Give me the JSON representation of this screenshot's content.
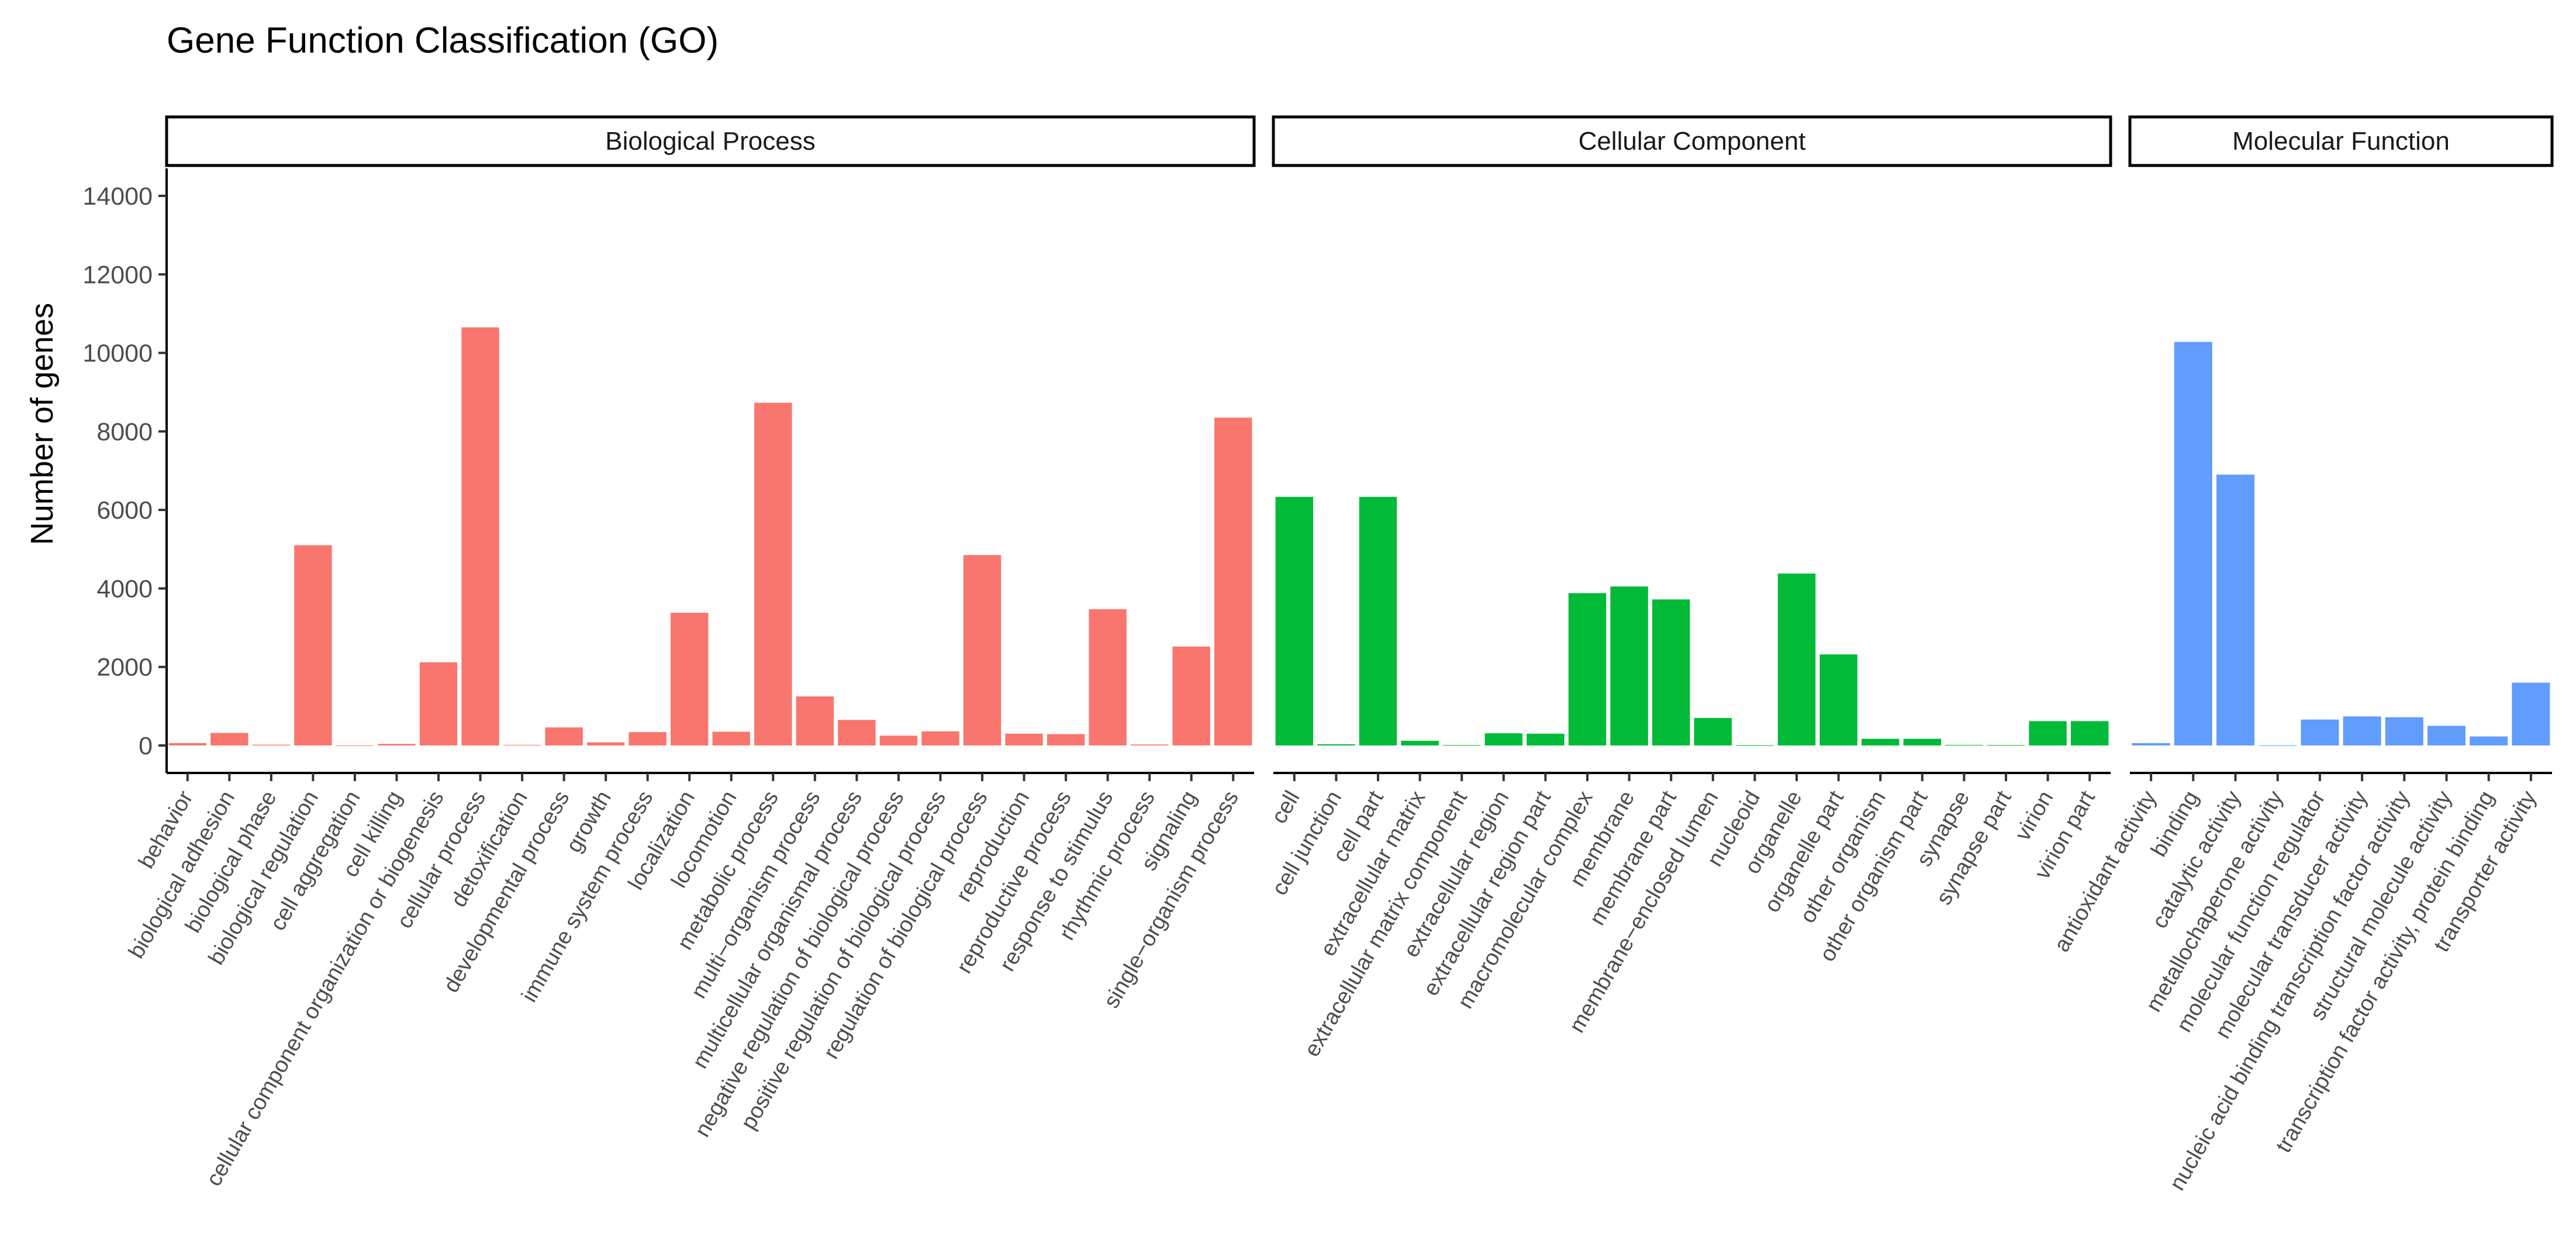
{
  "chart_data": {
    "type": "bar",
    "title": "Gene Function Classification (GO)",
    "xlabel": "",
    "ylabel": "Number of genes",
    "ylim": [
      -700,
      14700
    ],
    "yticks": [
      0,
      2000,
      4000,
      6000,
      8000,
      10000,
      12000,
      14000
    ],
    "grid": false,
    "legend": "none",
    "facets": [
      {
        "name": "Biological Process",
        "color": "#F8766D",
        "categories": [
          "behavior",
          "biological adhesion",
          "biological phase",
          "biological regulation",
          "cell aggregation",
          "cell killing",
          "cellular component organization or biogenesis",
          "cellular process",
          "detoxification",
          "developmental process",
          "growth",
          "immune system process",
          "localization",
          "locomotion",
          "metabolic process",
          "multi−organism process",
          "multicellular organismal process",
          "negative regulation of biological process",
          "positive regulation of biological process",
          "regulation of biological process",
          "reproduction",
          "reproductive process",
          "response to stimulus",
          "rhythmic process",
          "signaling",
          "single−organism process"
        ],
        "values": [
          60,
          320,
          20,
          5100,
          5,
          40,
          2120,
          10650,
          15,
          460,
          80,
          340,
          3380,
          350,
          8730,
          1250,
          650,
          250,
          360,
          4850,
          300,
          290,
          3470,
          25,
          2520,
          8350
        ]
      },
      {
        "name": "Cellular Component",
        "color": "#00BA38",
        "categories": [
          "cell",
          "cell junction",
          "cell part",
          "extracellular matrix",
          "extracellular matrix component",
          "extracellular region",
          "extracellular region part",
          "macromolecular complex",
          "membrane",
          "membrane part",
          "membrane−enclosed lumen",
          "nucleoid",
          "organelle",
          "organelle part",
          "other organism",
          "other organism part",
          "synapse",
          "synapse part",
          "virion",
          "virion part"
        ],
        "values": [
          6330,
          30,
          6330,
          120,
          10,
          310,
          300,
          3880,
          4050,
          3720,
          700,
          5,
          4380,
          2320,
          170,
          170,
          15,
          10,
          620,
          620
        ]
      },
      {
        "name": "Molecular Function",
        "color": "#619CFF",
        "categories": [
          "antioxidant activity",
          "binding",
          "catalytic activity",
          "metallochaperone activity",
          "molecular function regulator",
          "molecular transducer activity",
          "nucleic acid binding transcription factor activity",
          "structural molecule activity",
          "transcription factor activity, protein binding",
          "transporter activity"
        ],
        "values": [
          60,
          10280,
          6900,
          5,
          660,
          740,
          720,
          500,
          230,
          1600
        ]
      }
    ]
  }
}
